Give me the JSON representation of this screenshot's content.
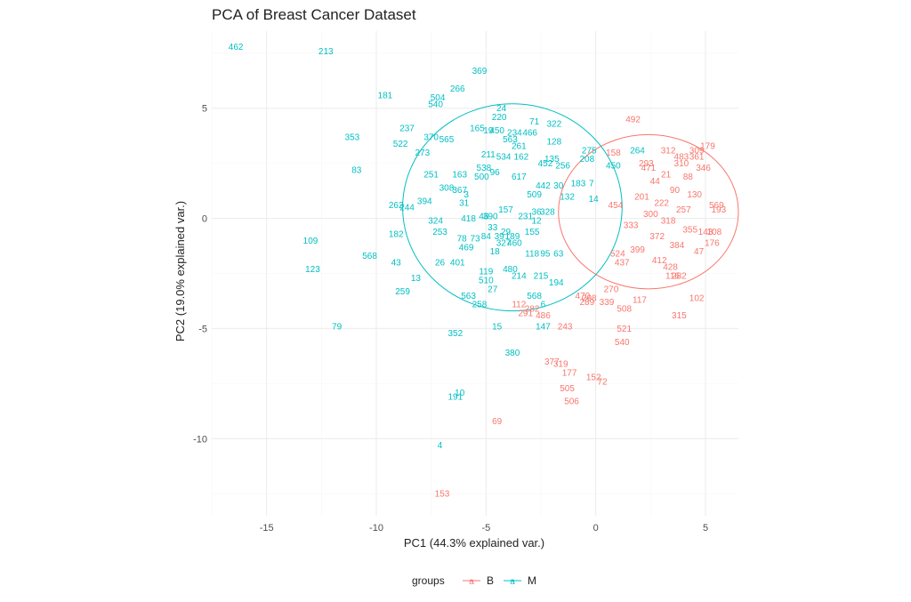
{
  "chart_data": {
    "type": "scatter",
    "title": "PCA of Breast Cancer Dataset",
    "xlabel": "PC1 (44.3% explained var.)",
    "ylabel": "PC2 (19.0% explained var.)",
    "xlim": [
      -17.5,
      6.5
    ],
    "ylim": [
      -13.5,
      8.5
    ],
    "x_ticks": [
      -15,
      -10,
      -5,
      0,
      5
    ],
    "y_ticks": [
      5,
      0,
      -5,
      -10
    ],
    "grid": true,
    "legend": {
      "title": "groups",
      "position": "bottom",
      "entries": [
        {
          "label": "B",
          "color": "#F8766D"
        },
        {
          "label": "M",
          "color": "#00BFC4"
        }
      ]
    },
    "ellipses": [
      {
        "group": "B",
        "center": [
          2.4,
          0.3
        ],
        "rx": 4.1,
        "ry": 3.5
      },
      {
        "group": "M",
        "center": [
          -3.8,
          0.5
        ],
        "rx": 5.0,
        "ry": 4.7
      }
    ],
    "series": [
      {
        "name": "M",
        "color": "#00BFC4",
        "points": [
          {
            "label": "462",
            "x": -16.4,
            "y": 7.8
          },
          {
            "label": "213",
            "x": -12.3,
            "y": 7.6
          },
          {
            "label": "369",
            "x": -5.3,
            "y": 6.7
          },
          {
            "label": "266",
            "x": -6.3,
            "y": 5.9
          },
          {
            "label": "181",
            "x": -9.6,
            "y": 5.6
          },
          {
            "label": "504",
            "x": -7.2,
            "y": 5.5
          },
          {
            "label": "540",
            "x": -7.3,
            "y": 5.2
          },
          {
            "label": "24",
            "x": -4.3,
            "y": 5.0
          },
          {
            "label": "220",
            "x": -4.4,
            "y": 4.6
          },
          {
            "label": "71",
            "x": -2.8,
            "y": 4.4
          },
          {
            "label": "322",
            "x": -1.9,
            "y": 4.3
          },
          {
            "label": "237",
            "x": -8.6,
            "y": 4.1
          },
          {
            "label": "165",
            "x": -5.4,
            "y": 4.1
          },
          {
            "label": "19",
            "x": -4.9,
            "y": 4.0
          },
          {
            "label": "450",
            "x": -4.5,
            "y": 4.0
          },
          {
            "label": "234",
            "x": -3.7,
            "y": 3.9
          },
          {
            "label": "466",
            "x": -3.0,
            "y": 3.9
          },
          {
            "label": "353",
            "x": -11.1,
            "y": 3.7
          },
          {
            "label": "370",
            "x": -7.5,
            "y": 3.7
          },
          {
            "label": "565",
            "x": -6.8,
            "y": 3.6
          },
          {
            "label": "522",
            "x": -8.9,
            "y": 3.4
          },
          {
            "label": "563",
            "x": -3.9,
            "y": 3.6
          },
          {
            "label": "261",
            "x": -3.5,
            "y": 3.3
          },
          {
            "label": "128",
            "x": -1.9,
            "y": 3.5
          },
          {
            "label": "273",
            "x": -7.9,
            "y": 3.0
          },
          {
            "label": "211",
            "x": -4.9,
            "y": 2.9
          },
          {
            "label": "534",
            "x": -4.2,
            "y": 2.8
          },
          {
            "label": "162",
            "x": -3.4,
            "y": 2.8
          },
          {
            "label": "135",
            "x": -2.0,
            "y": 2.7
          },
          {
            "label": "275",
            "x": -0.3,
            "y": 3.1
          },
          {
            "label": "208",
            "x": -0.4,
            "y": 2.7
          },
          {
            "label": "83",
            "x": -10.9,
            "y": 2.2
          },
          {
            "label": "538",
            "x": -5.1,
            "y": 2.3
          },
          {
            "label": "452",
            "x": -2.3,
            "y": 2.5
          },
          {
            "label": "256",
            "x": -1.5,
            "y": 2.4
          },
          {
            "label": "251",
            "x": -7.5,
            "y": 2.0
          },
          {
            "label": "163",
            "x": -6.2,
            "y": 2.0
          },
          {
            "label": "500",
            "x": -5.2,
            "y": 1.9
          },
          {
            "label": "96",
            "x": -4.6,
            "y": 2.1
          },
          {
            "label": "617",
            "x": -3.5,
            "y": 1.9
          },
          {
            "label": "183",
            "x": -0.8,
            "y": 1.6
          },
          {
            "label": "7",
            "x": -0.2,
            "y": 1.6
          },
          {
            "label": "308",
            "x": -6.8,
            "y": 1.4
          },
          {
            "label": "367",
            "x": -6.2,
            "y": 1.3
          },
          {
            "label": "442",
            "x": -2.4,
            "y": 1.5
          },
          {
            "label": "30",
            "x": -1.7,
            "y": 1.5
          },
          {
            "label": "3",
            "x": -5.9,
            "y": 1.1
          },
          {
            "label": "394",
            "x": -7.8,
            "y": 0.8
          },
          {
            "label": "31",
            "x": -6.0,
            "y": 0.7
          },
          {
            "label": "509",
            "x": -2.8,
            "y": 1.1
          },
          {
            "label": "132",
            "x": -1.3,
            "y": 1.0
          },
          {
            "label": "14",
            "x": -0.1,
            "y": 0.9
          },
          {
            "label": "262",
            "x": -9.1,
            "y": 0.6
          },
          {
            "label": "244",
            "x": -8.6,
            "y": 0.5
          },
          {
            "label": "157",
            "x": -4.1,
            "y": 0.4
          },
          {
            "label": "36",
            "x": -2.7,
            "y": 0.3
          },
          {
            "label": "231",
            "x": -3.2,
            "y": 0.1
          },
          {
            "label": "328",
            "x": -2.2,
            "y": 0.3
          },
          {
            "label": "390",
            "x": -4.8,
            "y": 0.1
          },
          {
            "label": "46",
            "x": -5.1,
            "y": 0.1
          },
          {
            "label": "418",
            "x": -5.8,
            "y": 0.0
          },
          {
            "label": "324",
            "x": -7.3,
            "y": -0.1
          },
          {
            "label": "12",
            "x": -2.7,
            "y": -0.1
          },
          {
            "label": "33",
            "x": -4.7,
            "y": -0.4
          },
          {
            "label": "29",
            "x": -4.1,
            "y": -0.6
          },
          {
            "label": "253",
            "x": -7.1,
            "y": -0.6
          },
          {
            "label": "182",
            "x": -9.1,
            "y": -0.7
          },
          {
            "label": "78",
            "x": -6.1,
            "y": -0.9
          },
          {
            "label": "73",
            "x": -5.5,
            "y": -0.9
          },
          {
            "label": "84",
            "x": -5.0,
            "y": -0.8
          },
          {
            "label": "39",
            "x": -4.4,
            "y": -0.8
          },
          {
            "label": "189",
            "x": -3.8,
            "y": -0.8
          },
          {
            "label": "155",
            "x": -2.9,
            "y": -0.6
          },
          {
            "label": "109",
            "x": -13.0,
            "y": -1.0
          },
          {
            "label": "460",
            "x": -3.7,
            "y": -1.1
          },
          {
            "label": "327",
            "x": -4.2,
            "y": -1.1
          },
          {
            "label": "469",
            "x": -5.9,
            "y": -1.3
          },
          {
            "label": "18",
            "x": -4.6,
            "y": -1.5
          },
          {
            "label": "118",
            "x": -2.9,
            "y": -1.6
          },
          {
            "label": "95",
            "x": -2.3,
            "y": -1.6
          },
          {
            "label": "63",
            "x": -1.7,
            "y": -1.6
          },
          {
            "label": "568",
            "x": -10.3,
            "y": -1.7
          },
          {
            "label": "43",
            "x": -9.1,
            "y": -2.0
          },
          {
            "label": "26",
            "x": -7.1,
            "y": -2.0
          },
          {
            "label": "401",
            "x": -6.3,
            "y": -2.0
          },
          {
            "label": "123",
            "x": -12.9,
            "y": -2.3
          },
          {
            "label": "119",
            "x": -5.0,
            "y": -2.4
          },
          {
            "label": "480",
            "x": -3.9,
            "y": -2.3
          },
          {
            "label": "214",
            "x": -3.5,
            "y": -2.6
          },
          {
            "label": "215",
            "x": -2.5,
            "y": -2.6
          },
          {
            "label": "13",
            "x": -8.2,
            "y": -2.7
          },
          {
            "label": "510",
            "x": -5.0,
            "y": -2.8
          },
          {
            "label": "194",
            "x": -1.8,
            "y": -2.9
          },
          {
            "label": "259",
            "x": -8.8,
            "y": -3.3
          },
          {
            "label": "563",
            "x": -5.8,
            "y": -3.5
          },
          {
            "label": "27",
            "x": -4.7,
            "y": -3.2
          },
          {
            "label": "568",
            "x": -2.8,
            "y": -3.5
          },
          {
            "label": "258",
            "x": -5.3,
            "y": -3.9
          },
          {
            "label": "6",
            "x": -2.4,
            "y": -3.9
          },
          {
            "label": "79",
            "x": -11.8,
            "y": -4.9
          },
          {
            "label": "352",
            "x": -6.4,
            "y": -5.2
          },
          {
            "label": "15",
            "x": -4.5,
            "y": -4.9
          },
          {
            "label": "147",
            "x": -2.4,
            "y": -4.9
          },
          {
            "label": "380",
            "x": -3.8,
            "y": -6.1
          },
          {
            "label": "10",
            "x": -6.2,
            "y": -7.9
          },
          {
            "label": "191",
            "x": -6.4,
            "y": -8.1
          },
          {
            "label": "4",
            "x": -7.1,
            "y": -10.3
          },
          {
            "label": "264",
            "x": 1.9,
            "y": 3.1
          },
          {
            "label": "450",
            "x": 0.8,
            "y": 2.4
          }
        ]
      },
      {
        "name": "B",
        "color": "#F8766D",
        "points": [
          {
            "label": "492",
            "x": 1.7,
            "y": 4.5
          },
          {
            "label": "179",
            "x": 5.1,
            "y": 3.3
          },
          {
            "label": "309",
            "x": 4.6,
            "y": 3.1
          },
          {
            "label": "312",
            "x": 3.3,
            "y": 3.1
          },
          {
            "label": "361",
            "x": 4.6,
            "y": 2.8
          },
          {
            "label": "158",
            "x": 0.8,
            "y": 3.0
          },
          {
            "label": "346",
            "x": 4.9,
            "y": 2.3
          },
          {
            "label": "293",
            "x": 2.3,
            "y": 2.5
          },
          {
            "label": "310",
            "x": 3.9,
            "y": 2.5
          },
          {
            "label": "569",
            "x": 5.5,
            "y": 0.6
          },
          {
            "label": "193",
            "x": 5.6,
            "y": 0.4
          },
          {
            "label": "143",
            "x": 5.0,
            "y": -0.6
          },
          {
            "label": "108",
            "x": 5.4,
            "y": -0.6
          },
          {
            "label": "176",
            "x": 5.3,
            "y": -1.1
          },
          {
            "label": "47",
            "x": 4.7,
            "y": -1.5
          },
          {
            "label": "524",
            "x": 1.0,
            "y": -1.6
          },
          {
            "label": "116",
            "x": 3.5,
            "y": -2.6
          },
          {
            "label": "282",
            "x": 3.8,
            "y": -2.6
          },
          {
            "label": "270",
            "x": 0.7,
            "y": -3.2
          },
          {
            "label": "102",
            "x": 4.6,
            "y": -3.6
          },
          {
            "label": "117",
            "x": 2.0,
            "y": -3.7
          },
          {
            "label": "470",
            "x": -0.6,
            "y": -3.5
          },
          {
            "label": "298",
            "x": -0.3,
            "y": -3.6
          },
          {
            "label": "289",
            "x": -0.4,
            "y": -3.8
          },
          {
            "label": "339",
            "x": 0.5,
            "y": -3.8
          },
          {
            "label": "112",
            "x": -3.5,
            "y": -3.9
          },
          {
            "label": "282",
            "x": -2.9,
            "y": -4.1
          },
          {
            "label": "291",
            "x": -3.2,
            "y": -4.3
          },
          {
            "label": "486",
            "x": -2.4,
            "y": -4.4
          },
          {
            "label": "508",
            "x": 1.3,
            "y": -4.1
          },
          {
            "label": "315",
            "x": 3.8,
            "y": -4.4
          },
          {
            "label": "243",
            "x": -1.4,
            "y": -4.9
          },
          {
            "label": "521",
            "x": 1.3,
            "y": -5.0
          },
          {
            "label": "540",
            "x": 1.2,
            "y": -5.6
          },
          {
            "label": "377",
            "x": -2.0,
            "y": -6.5
          },
          {
            "label": "319",
            "x": -1.6,
            "y": -6.6
          },
          {
            "label": "177",
            "x": -1.2,
            "y": -7.0
          },
          {
            "label": "152",
            "x": -0.1,
            "y": -7.2
          },
          {
            "label": "72",
            "x": 0.3,
            "y": -7.4
          },
          {
            "label": "505",
            "x": -1.3,
            "y": -7.7
          },
          {
            "label": "506",
            "x": -1.1,
            "y": -8.3
          },
          {
            "label": "69",
            "x": -4.5,
            "y": -9.2
          },
          {
            "label": "153",
            "x": -7.0,
            "y": -12.5
          },
          {
            "label": "21",
            "x": 3.2,
            "y": 2.0
          },
          {
            "label": "44",
            "x": 2.7,
            "y": 1.7
          },
          {
            "label": "88",
            "x": 4.2,
            "y": 1.9
          },
          {
            "label": "90",
            "x": 3.6,
            "y": 1.3
          },
          {
            "label": "130",
            "x": 4.5,
            "y": 1.1
          },
          {
            "label": "201",
            "x": 2.1,
            "y": 1.0
          },
          {
            "label": "222",
            "x": 3.0,
            "y": 0.7
          },
          {
            "label": "257",
            "x": 4.0,
            "y": 0.4
          },
          {
            "label": "300",
            "x": 2.5,
            "y": 0.2
          },
          {
            "label": "318",
            "x": 3.3,
            "y": -0.1
          },
          {
            "label": "333",
            "x": 1.6,
            "y": -0.3
          },
          {
            "label": "355",
            "x": 4.3,
            "y": -0.5
          },
          {
            "label": "372",
            "x": 2.8,
            "y": -0.8
          },
          {
            "label": "384",
            "x": 3.7,
            "y": -1.2
          },
          {
            "label": "399",
            "x": 1.9,
            "y": -1.4
          },
          {
            "label": "412",
            "x": 2.9,
            "y": -1.9
          },
          {
            "label": "428",
            "x": 3.4,
            "y": -2.2
          },
          {
            "label": "437",
            "x": 1.2,
            "y": -2.0
          },
          {
            "label": "454",
            "x": 0.9,
            "y": 0.6
          },
          {
            "label": "471",
            "x": 2.4,
            "y": 2.3
          },
          {
            "label": "483",
            "x": 3.9,
            "y": 2.8
          }
        ]
      }
    ]
  }
}
